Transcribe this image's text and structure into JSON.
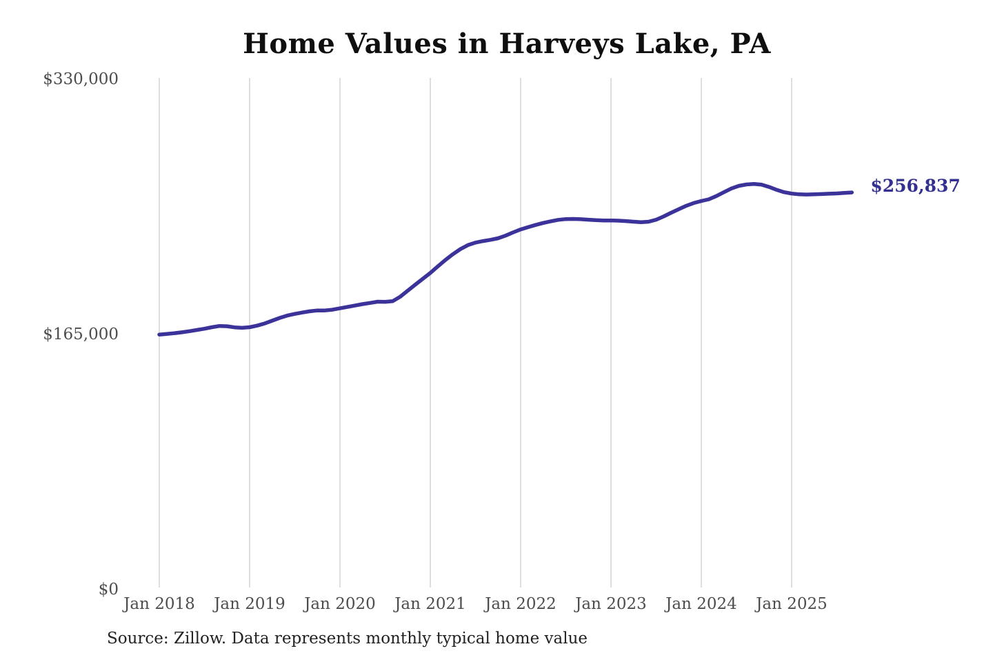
{
  "chart_data": {
    "type": "line",
    "title": "Home Values in Harveys Lake, PA",
    "source": "Source: Zillow. Data represents monthly typical home value",
    "end_label": "$256,837",
    "latest_value": 256837,
    "xlabel": "",
    "ylabel": "",
    "ylim": [
      0,
      330000
    ],
    "grid": "vertical-year-gridlines",
    "legend_position": "none",
    "y_ticks": [
      {
        "label": "$0",
        "value": 0
      },
      {
        "label": "$165,000",
        "value": 165000
      },
      {
        "label": "$330,000",
        "value": 330000
      }
    ],
    "x_ticks": [
      {
        "label": "Jan 2018",
        "month_index": 0
      },
      {
        "label": "Jan 2019",
        "month_index": 12
      },
      {
        "label": "Jan 2020",
        "month_index": 24
      },
      {
        "label": "Jan 2021",
        "month_index": 36
      },
      {
        "label": "Jan 2022",
        "month_index": 48
      },
      {
        "label": "Jan 2023",
        "month_index": 60
      },
      {
        "label": "Jan 2024",
        "month_index": 72
      },
      {
        "label": "Jan 2025",
        "month_index": 84
      }
    ],
    "series": [
      {
        "name": "Monthly typical home value (USD)",
        "start_month": "2018-01",
        "end_month": "2025-09",
        "values": [
          164900,
          165300,
          165800,
          166400,
          167100,
          167900,
          168700,
          169700,
          170500,
          170300,
          169600,
          169300,
          169700,
          170700,
          172100,
          173900,
          175700,
          177200,
          178300,
          179200,
          180000,
          180500,
          180500,
          181000,
          181900,
          182800,
          183700,
          184600,
          185400,
          186200,
          186100,
          186500,
          189400,
          193300,
          197200,
          201000,
          204800,
          209000,
          213100,
          216900,
          220200,
          222800,
          224400,
          225400,
          226200,
          227200,
          228900,
          231000,
          232900,
          234400,
          235800,
          237100,
          238200,
          239100,
          239600,
          239700,
          239500,
          239200,
          238900,
          238700,
          238700,
          238600,
          238300,
          237900,
          237600,
          237900,
          239200,
          241300,
          243700,
          246000,
          248200,
          250000,
          251300,
          252400,
          254500,
          257000,
          259400,
          261100,
          262000,
          262300,
          261900,
          260400,
          258500,
          257000,
          256100,
          255600,
          255500,
          255600,
          255800,
          256000,
          256200,
          256500,
          256837
        ]
      }
    ],
    "colors": {
      "line": "#3b3399",
      "end_label": "#33308f",
      "gridline": "#cccccc",
      "tick_label": "#4d4d4d",
      "title": "#0f0f0f",
      "source": "#222222",
      "background": "#ffffff"
    }
  }
}
